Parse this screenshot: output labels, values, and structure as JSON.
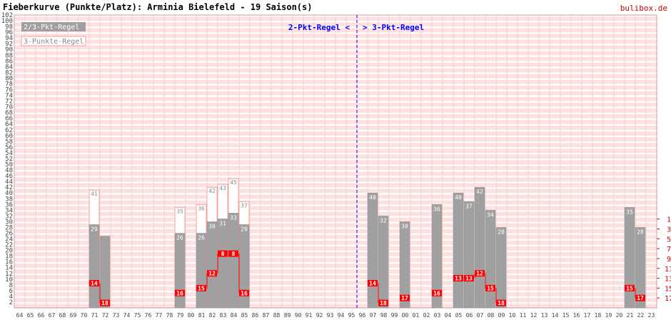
{
  "header": {
    "title": "Fieberkurve (Punkte/Platz): Arminia Bielefeld - 19 Saison(s)",
    "brand": "bulibox.de"
  },
  "colors": {
    "bar_23": "#a0a0a0",
    "bar_3pkt_outline": "#f0a0a0",
    "place_box": "#ff0000",
    "place_line": "#ff0000",
    "stripe": "#ffe0e0",
    "separator": "#0000ff",
    "label_light": "#888888"
  },
  "chart_data": {
    "type": "bar",
    "title": "Fieberkurve (Punkte/Platz): Arminia Bielefeld - 19 Saison(s)",
    "xlabel": "",
    "ylabel": "",
    "ylim": [
      0,
      102
    ],
    "yticks": [
      2,
      4,
      6,
      8,
      10,
      12,
      14,
      16,
      18,
      20,
      22,
      24,
      26,
      28,
      30,
      32,
      34,
      36,
      38,
      40,
      42,
      44,
      46,
      48,
      50,
      52,
      54,
      56,
      58,
      60,
      62,
      64,
      66,
      68,
      70,
      72,
      74,
      76,
      78,
      80,
      82,
      84,
      86,
      88,
      90,
      92,
      94,
      96,
      98,
      100,
      102
    ],
    "place_ticks": [
      "1",
      "3",
      "5",
      "7",
      "9",
      "11",
      "13",
      "15",
      "17"
    ],
    "categories": [
      "64",
      "65",
      "66",
      "67",
      "68",
      "69",
      "70",
      "71",
      "72",
      "73",
      "74",
      "75",
      "76",
      "77",
      "78",
      "79",
      "80",
      "81",
      "82",
      "83",
      "84",
      "85",
      "86",
      "87",
      "88",
      "89",
      "90",
      "91",
      "92",
      "93",
      "94",
      "95",
      "96",
      "97",
      "98",
      "99",
      "00",
      "01",
      "02",
      "03",
      "04",
      "05",
      "06",
      "07",
      "08",
      "09",
      "10",
      "11",
      "12",
      "13",
      "14",
      "15",
      "16",
      "17",
      "18",
      "19",
      "20",
      "21",
      "22",
      "23"
    ],
    "legend": [
      "2/3-Pkt-Regel",
      "3-Punkte-Regel"
    ],
    "legend_position": "top-left",
    "annotations": {
      "left": "2-Pkt-Regel <",
      "right": "> 3-Pkt-Regel",
      "separator_after": "95"
    },
    "grid": true,
    "seasons": [
      {
        "x": "71",
        "points": 29,
        "points3": 41,
        "place": 14
      },
      {
        "x": "72",
        "points": 25,
        "points3": 25,
        "place": 18
      },
      {
        "x": "79",
        "points": 26,
        "points3": 35,
        "place": 16
      },
      {
        "x": "81",
        "points": 26,
        "points3": 36,
        "place": 15
      },
      {
        "x": "82",
        "points": 30,
        "points3": 42,
        "place": 12
      },
      {
        "x": "83",
        "points": 31,
        "points3": 43,
        "place": 8
      },
      {
        "x": "84",
        "points": 33,
        "points3": 45,
        "place": 8
      },
      {
        "x": "85",
        "points": 29,
        "points3": 37,
        "place": 16
      },
      {
        "x": "97",
        "points": 40,
        "place": 14
      },
      {
        "x": "98",
        "points": 32,
        "place": 18
      },
      {
        "x": "00",
        "points": 30,
        "place": 17
      },
      {
        "x": "03",
        "points": 36,
        "place": 16
      },
      {
        "x": "05",
        "points": 40,
        "place": 13
      },
      {
        "x": "06",
        "points": 37,
        "place": 13
      },
      {
        "x": "07",
        "points": 42,
        "place": 12
      },
      {
        "x": "08",
        "points": 34,
        "place": 15
      },
      {
        "x": "09",
        "points": 28,
        "place": 18
      },
      {
        "x": "21",
        "points": 35,
        "place": 15
      },
      {
        "x": "22",
        "points": 28,
        "place": 17
      }
    ]
  }
}
